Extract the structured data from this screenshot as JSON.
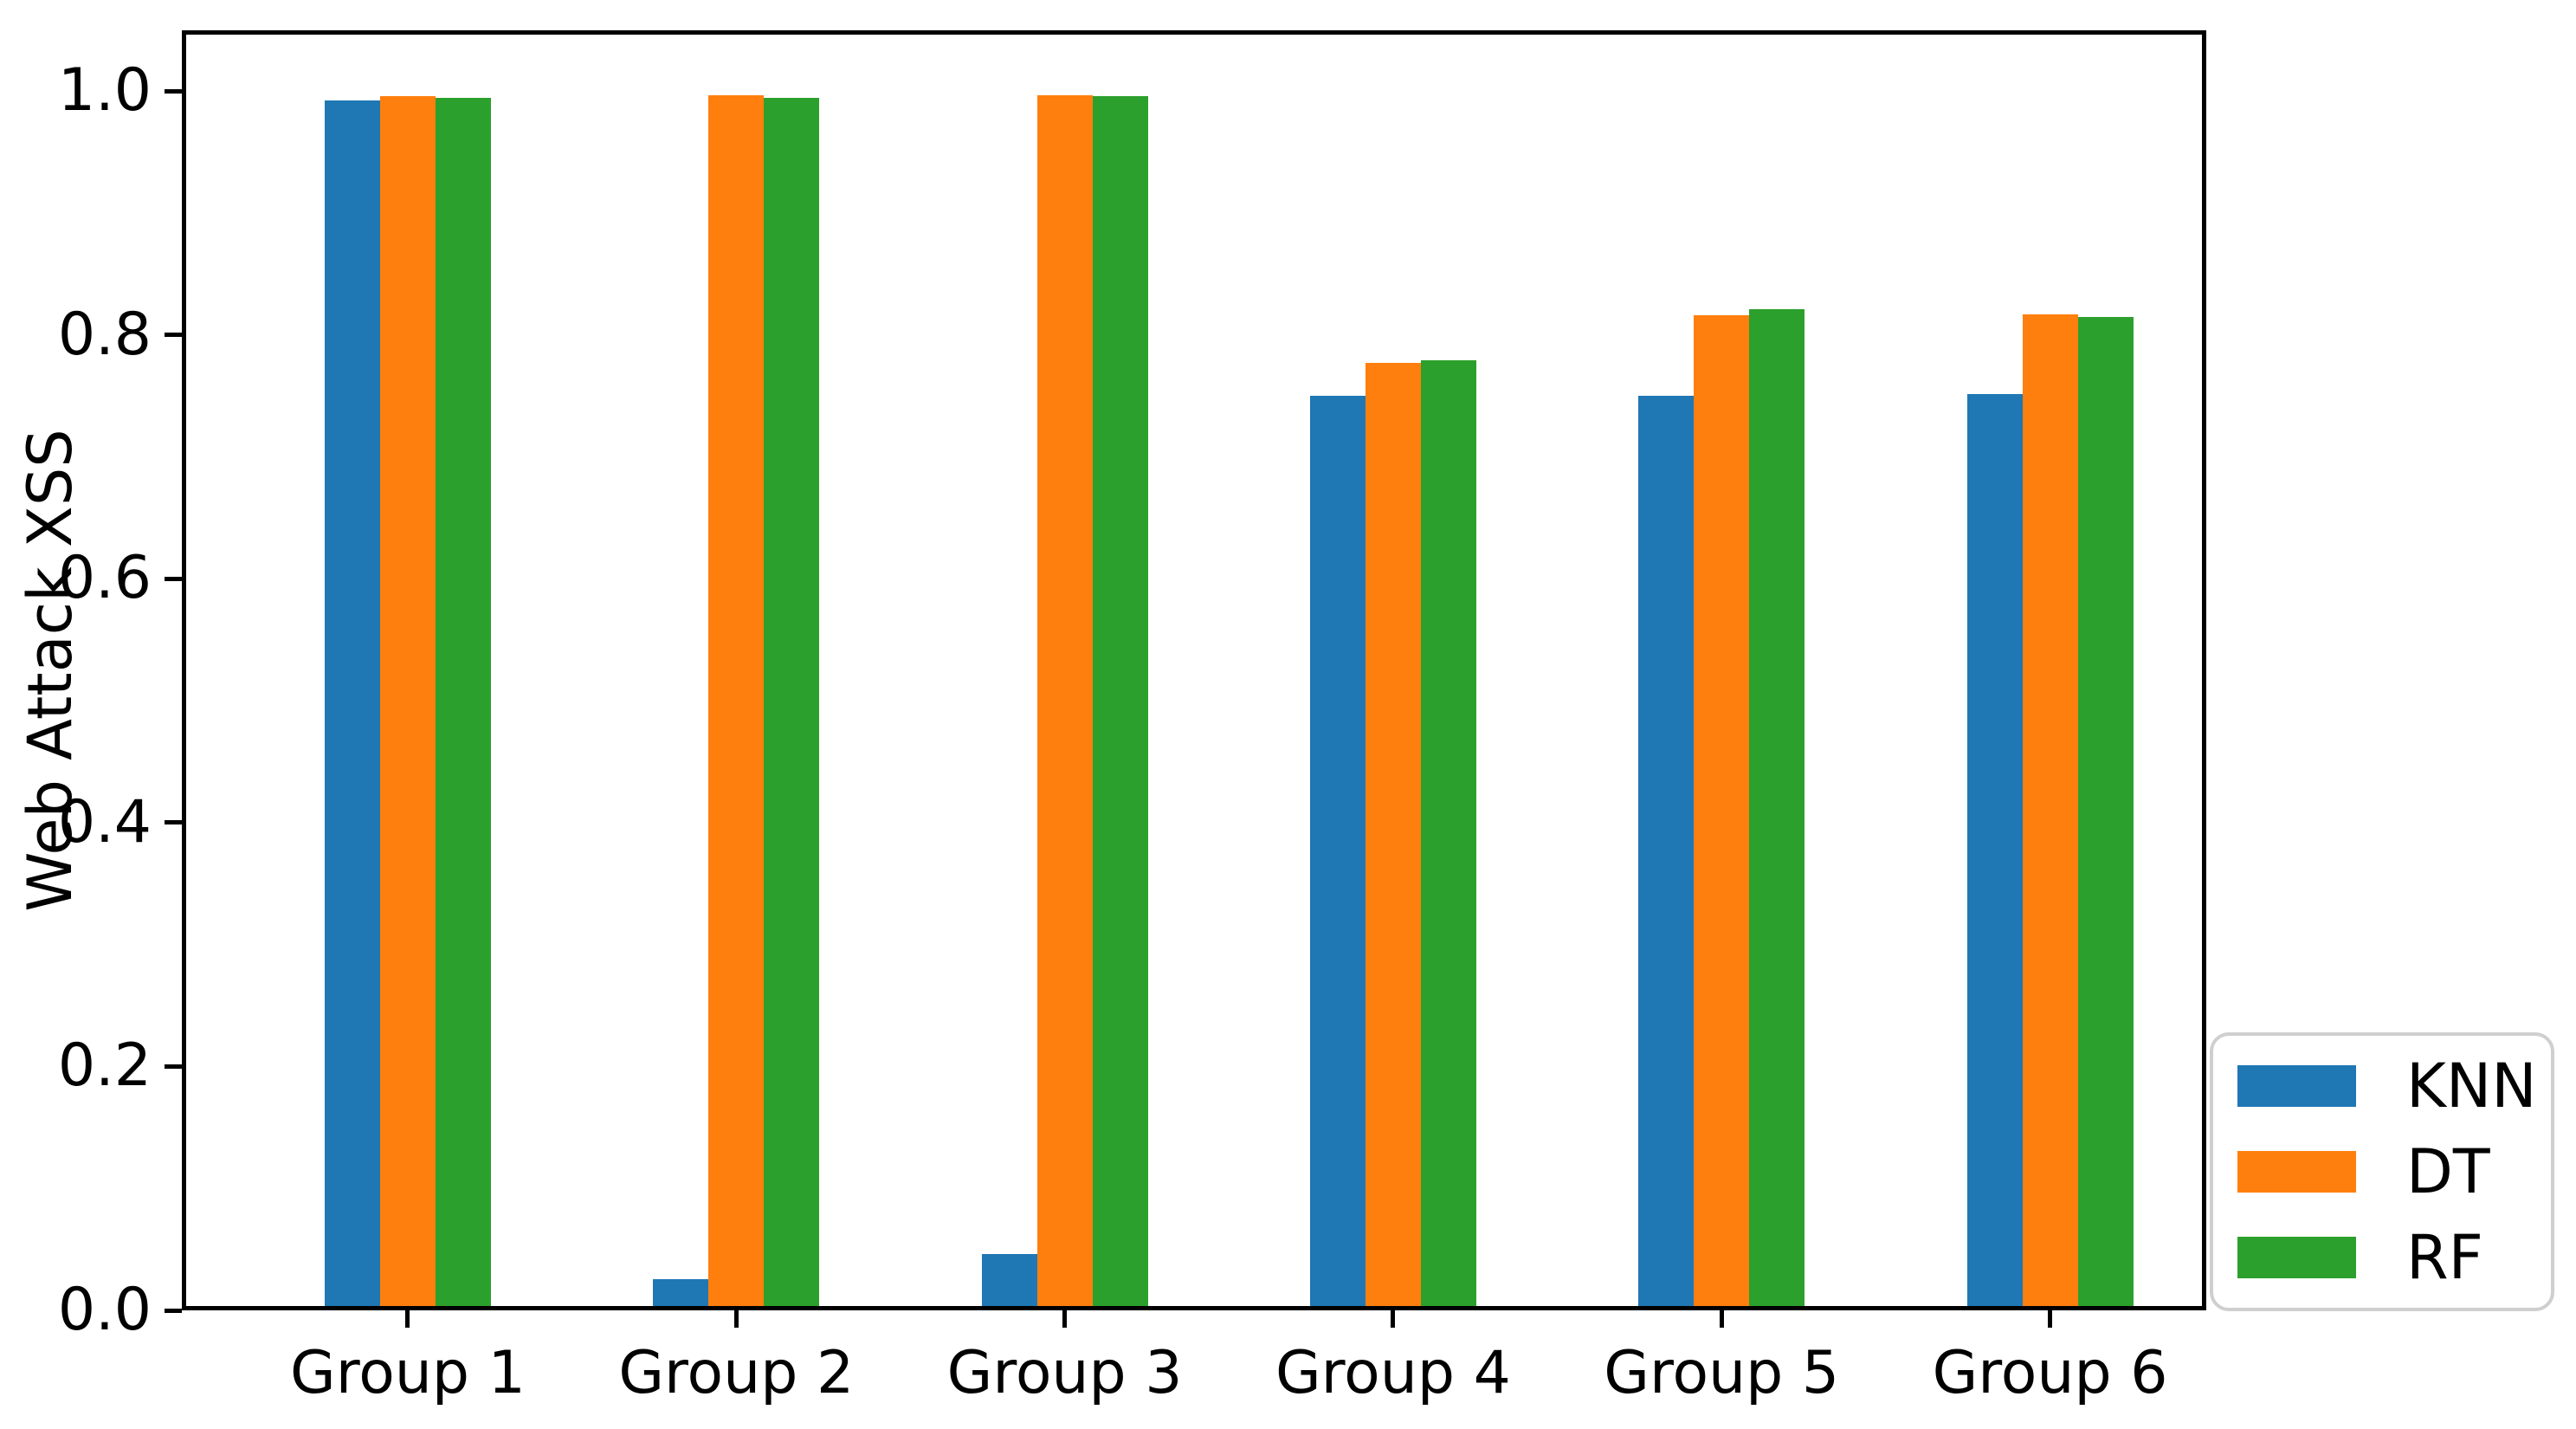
{
  "chart_data": {
    "type": "bar",
    "title": "",
    "xlabel": "",
    "ylabel": "Web Attack XSS",
    "categories": [
      "Group 1",
      "Group 2",
      "Group 3",
      "Group 4",
      "Group 5",
      "Group 6"
    ],
    "series": [
      {
        "name": "KNN",
        "color": "#1f77b4",
        "values": [
          0.996,
          0.022,
          0.043,
          0.752,
          0.752,
          0.753
        ]
      },
      {
        "name": "DT",
        "color": "#ff7f0e",
        "values": [
          0.999,
          1.0,
          1.0,
          0.779,
          0.818,
          0.819
        ]
      },
      {
        "name": "RF",
        "color": "#2ca02c",
        "values": [
          0.998,
          0.998,
          0.999,
          0.781,
          0.823,
          0.817
        ]
      }
    ],
    "ylim": [
      0,
      1.05
    ],
    "yticks": [
      "0.0",
      "0.2",
      "0.4",
      "0.6",
      "0.8",
      "1.0"
    ],
    "grid": false,
    "legend": {
      "position": "lower-right, outside plot",
      "entries": [
        "KNN",
        "DT",
        "RF"
      ]
    },
    "axis_color": "#000000",
    "text_color": "#000000",
    "background_color": "#ffffff"
  }
}
